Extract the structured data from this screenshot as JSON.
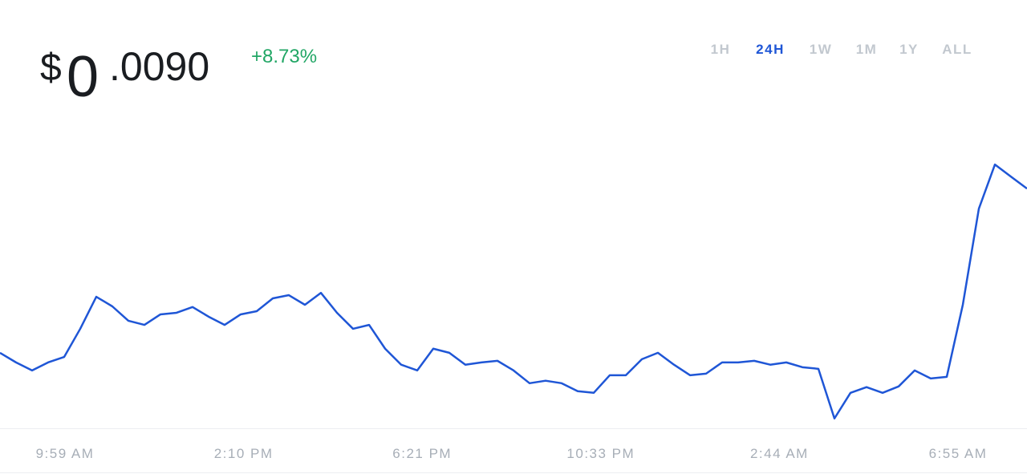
{
  "price": {
    "currency": "$",
    "integer": "0",
    "decimals": ".0090"
  },
  "change": "+8.73%",
  "ranges": [
    "1H",
    "24H",
    "1W",
    "1M",
    "1Y",
    "ALL"
  ],
  "active_range": "24H",
  "chart_data": {
    "type": "line",
    "color": "#1f56d6",
    "ylim": [
      0.00795,
      0.0093
    ],
    "x_labels": [
      "9:59 AM",
      "2:10 PM",
      "6:21 PM",
      "10:33 PM",
      "2:44 AM",
      "6:55 AM"
    ],
    "values": [
      0.00828,
      0.008238,
      0.008203,
      0.008238,
      0.008262,
      0.008385,
      0.008525,
      0.008483,
      0.00842,
      0.008402,
      0.008448,
      0.008455,
      0.00848,
      0.008438,
      0.008402,
      0.008448,
      0.008462,
      0.008518,
      0.008532,
      0.00849,
      0.008542,
      0.008455,
      0.008385,
      0.008402,
      0.008298,
      0.008228,
      0.008203,
      0.008298,
      0.00828,
      0.008228,
      0.008238,
      0.008245,
      0.008203,
      0.008147,
      0.008158,
      0.008147,
      0.008112,
      0.008105,
      0.008182,
      0.008182,
      0.008252,
      0.00828,
      0.008228,
      0.008182,
      0.008189,
      0.008238,
      0.008238,
      0.008245,
      0.008228,
      0.008238,
      0.008217,
      0.00821,
      0.007993,
      0.008105,
      0.00813,
      0.008105,
      0.008133,
      0.008203,
      0.008168,
      0.008175,
      0.00849,
      0.00891,
      0.009103,
      0.00905,
      0.008998
    ]
  }
}
